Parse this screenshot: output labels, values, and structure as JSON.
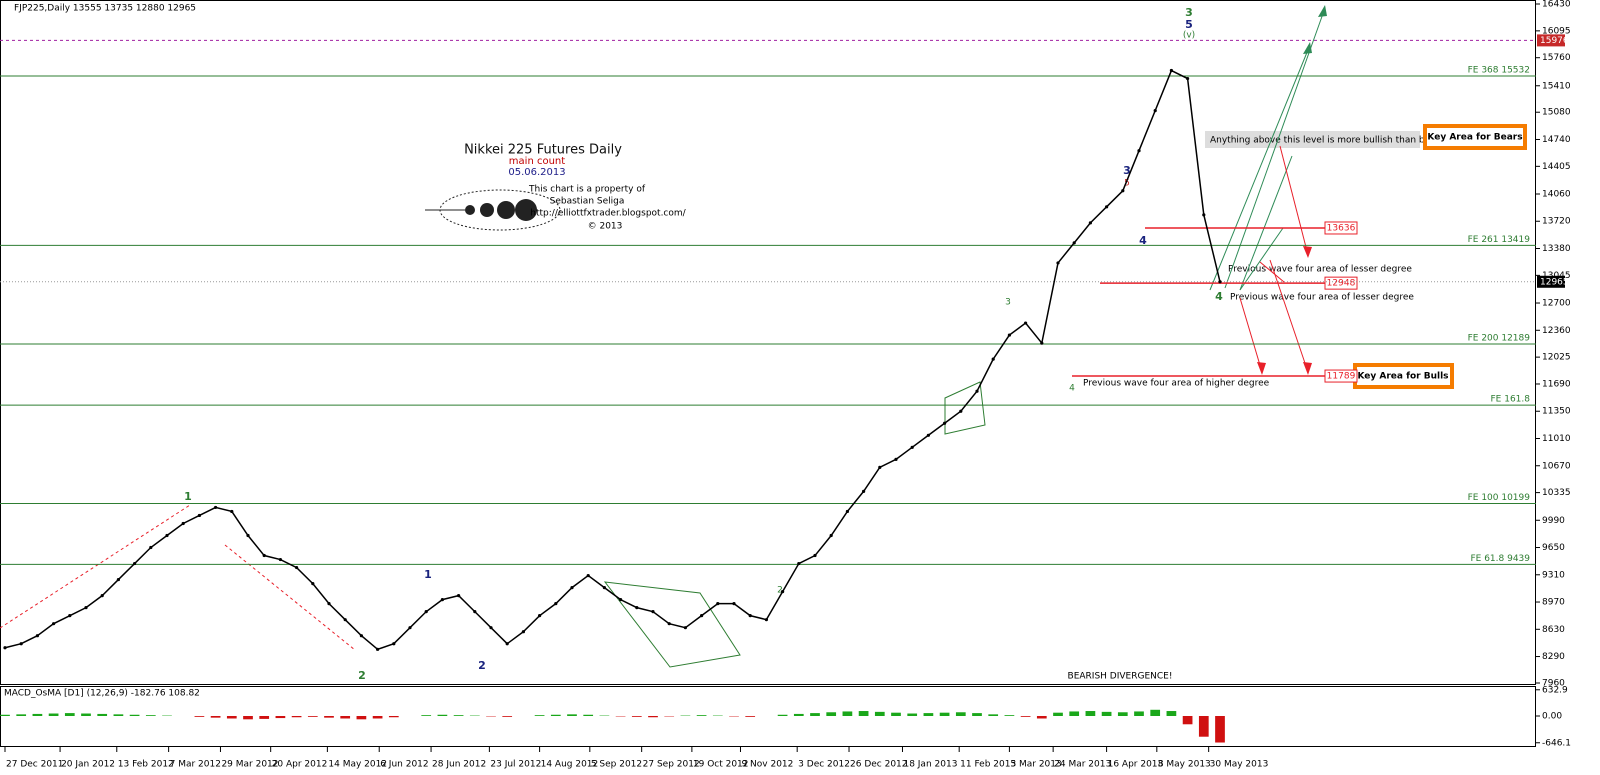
{
  "header": "FJP225,Daily  13555 13735 12880 12965",
  "chart_data": {
    "type": "line",
    "title": "Nikkei 225 Futures Daily",
    "subtitle": "main count",
    "date": "05.06.2013",
    "color": "#000000",
    "values": [
      8400,
      8450,
      8550,
      8700,
      8800,
      8900,
      9050,
      9250,
      9450,
      9650,
      9800,
      9950,
      10050,
      10150,
      10100,
      9800,
      9550,
      9500,
      9400,
      9200,
      8950,
      8750,
      8550,
      8380,
      8450,
      8650,
      8850,
      9000,
      9050,
      8850,
      8650,
      8450,
      8600,
      8800,
      8950,
      9150,
      9300,
      9150,
      9000,
      8900,
      8850,
      8700,
      8650,
      8800,
      8950,
      8950,
      8800,
      8750,
      9100,
      9450,
      9550,
      9800,
      10100,
      10350,
      10650,
      10750,
      10900,
      11050,
      11200,
      11350,
      11600,
      12000,
      12300,
      12450,
      12200,
      13200,
      13450,
      13700,
      13900,
      14100,
      14600,
      15100,
      15600,
      15500,
      13800,
      12965
    ],
    "xlim": [
      0,
      75
    ],
    "xticks": [
      {
        "value": 0,
        "label": "27 Dec 2011"
      },
      {
        "value": 3.4,
        "label": "20 Jan 2012"
      },
      {
        "value": 6.9,
        "label": "13 Feb 2012"
      },
      {
        "value": 10.1,
        "label": "7 Mar 2012"
      },
      {
        "value": 13.3,
        "label": "29 Mar 2012"
      },
      {
        "value": 16.4,
        "label": "20 Apr 2012"
      },
      {
        "value": 19.9,
        "label": "14 May 2012"
      },
      {
        "value": 23.1,
        "label": "6 Jun 2012"
      },
      {
        "value": 26.3,
        "label": "28 Jun 2012"
      },
      {
        "value": 29.9,
        "label": "23 Jul 2012"
      },
      {
        "value": 33,
        "label": "14 Aug 2012"
      },
      {
        "value": 36.1,
        "label": "5 Sep 2012"
      },
      {
        "value": 39.3,
        "label": "27 Sep 2012"
      },
      {
        "value": 42.4,
        "label": "19 Oct 2012"
      },
      {
        "value": 45.4,
        "label": "9 Nov 2012"
      },
      {
        "value": 48.9,
        "label": "3 Dec 2012"
      },
      {
        "value": 52.1,
        "label": "26 Dec 2012"
      },
      {
        "value": 55.4,
        "label": "18 Jan 2013"
      },
      {
        "value": 58.9,
        "label": "11 Feb 2013"
      },
      {
        "value": 62,
        "label": "5 Mar 2013"
      },
      {
        "value": 64.7,
        "label": "24 Mar 2013"
      },
      {
        "value": 68,
        "label": "16 Apr 2013"
      },
      {
        "value": 71.1,
        "label": "8 May 2013"
      },
      {
        "value": 74.3,
        "label": "30 May 2013"
      }
    ],
    "ylim": [
      7960,
      16430
    ],
    "yticks": [
      16430,
      16095,
      15760,
      15410,
      15080,
      14740,
      14405,
      14060,
      13720,
      13380,
      13045,
      12700,
      12360,
      12025,
      11690,
      11350,
      11010,
      10670,
      10335,
      9990,
      9650,
      9310,
      8970,
      8630,
      8290,
      7960
    ],
    "current_price": 12965,
    "top_level": 15976,
    "levels": [
      {
        "label": "FE 368 15532",
        "value": 15532
      },
      {
        "label": "FE 261 13419",
        "value": 13419
      },
      {
        "label": "FE 200 12189",
        "value": 12189
      },
      {
        "label": "FE 161.8",
        "value": 11426
      },
      {
        "label": "FE 100 10199",
        "value": 10199
      },
      {
        "label": "FE 61.8 9439",
        "value": 9439
      }
    ],
    "level_color": "#2e7d32",
    "red_levels": [
      13636,
      12948,
      11789
    ],
    "red_color": "#e8202a",
    "macd": {
      "label": "MACD_OsMA [D1] (12,26,9) -182.76 108.82",
      "values": [
        30,
        40,
        50,
        60,
        70,
        60,
        50,
        40,
        30,
        20,
        10,
        0,
        -20,
        -40,
        -60,
        -80,
        -70,
        -50,
        -30,
        -20,
        -40,
        -60,
        -80,
        -60,
        -30,
        0,
        20,
        30,
        20,
        10,
        -10,
        -20,
        0,
        20,
        30,
        40,
        30,
        10,
        -10,
        -20,
        -30,
        -10,
        10,
        20,
        10,
        -10,
        -20,
        0,
        30,
        50,
        70,
        90,
        110,
        120,
        100,
        80,
        60,
        70,
        80,
        90,
        70,
        40,
        20,
        -20,
        -60,
        80,
        110,
        120,
        100,
        90,
        110,
        150,
        120,
        -200,
        -500,
        -640
      ],
      "ylim": [
        -700,
        700
      ],
      "yticks": [
        632.9,
        {
          "value": 0,
          "label": "0.00"
        },
        -646.1
      ],
      "up_color": "#1aa71a",
      "down_color": "#d01010"
    }
  },
  "annotations": {
    "owner": "This chart is a property of",
    "author": "Sebastian Seliga",
    "url": "http://elliottfxtrader.blogspot.com/",
    "copyright": "© 2013",
    "divergence": "BEARISH DIVERGENCE!",
    "bullish_note": "Anything above this level is more bullish than bearish",
    "bears": "Key Area for Bears",
    "bulls": "Key Area for Bulls",
    "lesser_1": "Previous wave  four area  of lesser degree",
    "lesser_2": "Previous wave  four area  of lesser  degree",
    "higher": "Previous wave  four area  of higher degree"
  },
  "wave_labels": [
    "3",
    "5",
    "(v)",
    "4",
    "3",
    "5",
    "4",
    "1",
    "2",
    "2",
    "3",
    "1",
    "2",
    "4"
  ]
}
